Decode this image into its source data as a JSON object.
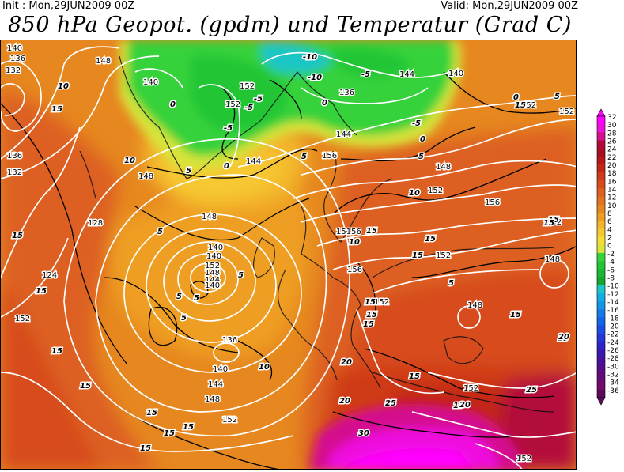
{
  "header": {
    "init": "Init : Mon,29JUN2009  00Z",
    "valid": "Valid: Mon,29JUN2009  00Z",
    "title": "850 hPa Geopot. (gpdm) und Temperatur (Grad C)"
  },
  "legend": {
    "levels": [
      "32",
      "30",
      "28",
      "26",
      "24",
      "22",
      "20",
      "18",
      "16",
      "14",
      "12",
      "10",
      "8",
      "6",
      "4",
      "2",
      "0",
      "-2",
      "-4",
      "-6",
      "-8",
      "-10",
      "-12",
      "-14",
      "-16",
      "-18",
      "-20",
      "-22",
      "-24",
      "-26",
      "-28",
      "-30",
      "-32",
      "-34",
      "-36"
    ],
    "colors": [
      "#ff00ff",
      "#ee11dd",
      "#d4108e",
      "#b3093a",
      "#a80e1f",
      "#bb1616",
      "#c32616",
      "#cf3a18",
      "#d74c1a",
      "#dd6020",
      "#e2741f",
      "#e6871f",
      "#ee9e22",
      "#f3b52a",
      "#f6c830",
      "#f4dc35",
      "#d8e43a",
      "#36d23a",
      "#22c634",
      "#18b832",
      "#12a82e",
      "#1cc6c6",
      "#12aedf",
      "#1196e6",
      "#137cea",
      "#1464ea",
      "#1b4ce6",
      "#2436d8",
      "#2c24c6",
      "#3a18b0",
      "#4a1099",
      "#580c86",
      "#680978",
      "#760a6c",
      "#5a0a58"
    ]
  },
  "map": {
    "geopot_labels": [
      {
        "text": "140"
      },
      {
        "text": "136"
      },
      {
        "text": "132"
      },
      {
        "text": "148"
      },
      {
        "text": "140"
      },
      {
        "text": "152"
      },
      {
        "text": "152"
      },
      {
        "text": "144"
      },
      {
        "text": "136"
      },
      {
        "text": "140"
      },
      {
        "text": "144"
      },
      {
        "text": "152"
      },
      {
        "text": "144"
      },
      {
        "text": "148"
      },
      {
        "text": "156"
      },
      {
        "text": "148"
      },
      {
        "text": "152"
      },
      {
        "text": "156"
      },
      {
        "text": "148"
      },
      {
        "text": "140"
      },
      {
        "text": "140"
      },
      {
        "text": "152"
      },
      {
        "text": "148"
      },
      {
        "text": "144"
      },
      {
        "text": "140"
      },
      {
        "text": "136"
      },
      {
        "text": "132"
      },
      {
        "text": "128"
      },
      {
        "text": "124"
      },
      {
        "text": "152"
      },
      {
        "text": "156"
      },
      {
        "text": "15156"
      },
      {
        "text": "152"
      },
      {
        "text": "152"
      },
      {
        "text": "136"
      },
      {
        "text": "140"
      },
      {
        "text": "144"
      },
      {
        "text": "148"
      },
      {
        "text": "152"
      },
      {
        "text": "152"
      },
      {
        "text": "148"
      },
      {
        "text": "148"
      },
      {
        "text": "152"
      },
      {
        "text": "152"
      },
      {
        "text": "152"
      },
      {
        "text": "156"
      }
    ],
    "temp_labels": [
      {
        "text": "-10"
      },
      {
        "text": "-10"
      },
      {
        "text": "-5"
      },
      {
        "text": "-5"
      },
      {
        "text": "-5"
      },
      {
        "text": "-5"
      },
      {
        "text": "-5"
      },
      {
        "text": "0"
      },
      {
        "text": "0"
      },
      {
        "text": "0"
      },
      {
        "text": "0"
      },
      {
        "text": "0"
      },
      {
        "text": "5"
      },
      {
        "text": "5"
      },
      {
        "text": "5"
      },
      {
        "text": "5"
      },
      {
        "text": "5"
      },
      {
        "text": "5"
      },
      {
        "text": "5"
      },
      {
        "text": "5"
      },
      {
        "text": "5"
      },
      {
        "text": "5"
      },
      {
        "text": "10"
      },
      {
        "text": "10"
      },
      {
        "text": "10"
      },
      {
        "text": "10"
      },
      {
        "text": "10"
      },
      {
        "text": "15"
      },
      {
        "text": "15"
      },
      {
        "text": "15"
      },
      {
        "text": "15"
      },
      {
        "text": "15"
      },
      {
        "text": "15"
      },
      {
        "text": "15"
      },
      {
        "text": "15"
      },
      {
        "text": "15"
      },
      {
        "text": "15"
      },
      {
        "text": "15"
      },
      {
        "text": "15"
      },
      {
        "text": "15"
      },
      {
        "text": "15"
      },
      {
        "text": "15"
      },
      {
        "text": "15"
      },
      {
        "text": "15"
      },
      {
        "text": "15"
      },
      {
        "text": "15"
      },
      {
        "text": "15"
      },
      {
        "text": "20"
      },
      {
        "text": "20"
      },
      {
        "text": "20"
      },
      {
        "text": "20"
      },
      {
        "text": "25"
      },
      {
        "text": "25"
      },
      {
        "text": "30"
      },
      {
        "text": "15"
      },
      {
        "text": "15"
      },
      {
        "text": "15"
      },
      {
        "text": "15"
      },
      {
        "text": "15"
      }
    ]
  }
}
